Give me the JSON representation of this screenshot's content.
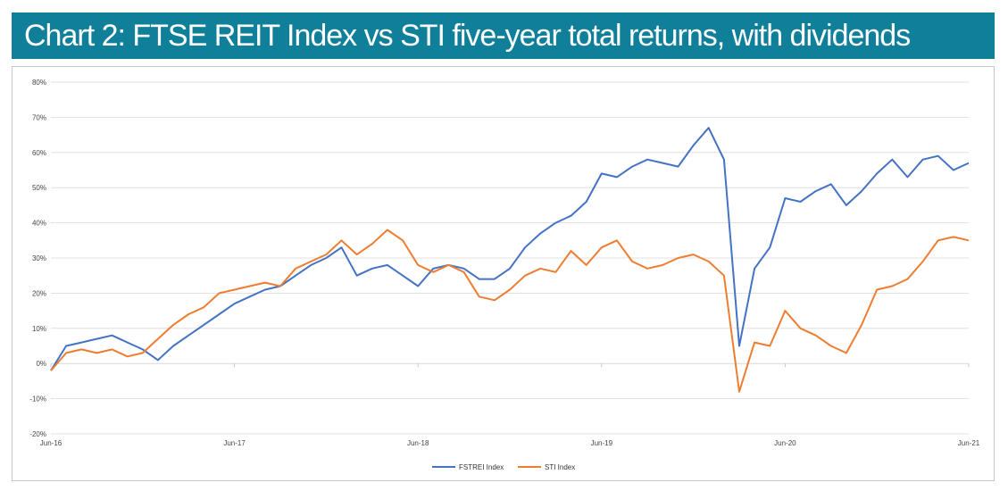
{
  "header": {
    "title": "Chart 2: FTSE REIT Index vs STI five-year total returns, with dividends"
  },
  "colors": {
    "title_bg": "#0f7f9a",
    "series_1": "#4472c4",
    "series_2": "#ed7d31",
    "grid": "#d9d9d9"
  },
  "chart_data": {
    "type": "line",
    "title": "Chart 2: FTSE REIT Index vs STI five-year total returns, with dividends",
    "xlabel": "",
    "ylabel": "",
    "x_ticks": [
      "Jun-16",
      "Jun-17",
      "Jun-18",
      "Jun-19",
      "Jun-20",
      "Jun-21"
    ],
    "y_ticks": [
      "80%",
      "70%",
      "60%",
      "50%",
      "40%",
      "30%",
      "20%",
      "10%",
      "0%",
      "-10%",
      "-20%"
    ],
    "ylim": [
      -20,
      80
    ],
    "xlim": [
      "2016-06",
      "2021-06"
    ],
    "grid": "horizontal",
    "legend_position": "bottom",
    "series": [
      {
        "name": "FSTREI Index",
        "color": "#4472c4",
        "points": [
          [
            "2016-06",
            -2
          ],
          [
            "2016-07",
            5
          ],
          [
            "2016-08",
            6
          ],
          [
            "2016-09",
            7
          ],
          [
            "2016-10",
            8
          ],
          [
            "2016-11",
            6
          ],
          [
            "2016-12",
            4
          ],
          [
            "2017-01",
            1
          ],
          [
            "2017-02",
            5
          ],
          [
            "2017-03",
            8
          ],
          [
            "2017-04",
            11
          ],
          [
            "2017-05",
            14
          ],
          [
            "2017-06",
            17
          ],
          [
            "2017-07",
            19
          ],
          [
            "2017-08",
            21
          ],
          [
            "2017-09",
            22
          ],
          [
            "2017-10",
            25
          ],
          [
            "2017-11",
            28
          ],
          [
            "2017-12",
            30
          ],
          [
            "2018-01",
            33
          ],
          [
            "2018-02",
            25
          ],
          [
            "2018-03",
            27
          ],
          [
            "2018-04",
            28
          ],
          [
            "2018-05",
            25
          ],
          [
            "2018-06",
            22
          ],
          [
            "2018-07",
            27
          ],
          [
            "2018-08",
            28
          ],
          [
            "2018-09",
            27
          ],
          [
            "2018-10",
            24
          ],
          [
            "2018-11",
            24
          ],
          [
            "2018-12",
            27
          ],
          [
            "2019-01",
            33
          ],
          [
            "2019-02",
            37
          ],
          [
            "2019-03",
            40
          ],
          [
            "2019-04",
            42
          ],
          [
            "2019-05",
            46
          ],
          [
            "2019-06",
            54
          ],
          [
            "2019-07",
            53
          ],
          [
            "2019-08",
            56
          ],
          [
            "2019-09",
            58
          ],
          [
            "2019-10",
            57
          ],
          [
            "2019-11",
            56
          ],
          [
            "2019-12",
            62
          ],
          [
            "2020-01",
            67
          ],
          [
            "2020-02",
            58
          ],
          [
            "2020-03",
            5
          ],
          [
            "2020-04",
            27
          ],
          [
            "2020-05",
            33
          ],
          [
            "2020-06",
            47
          ],
          [
            "2020-07",
            46
          ],
          [
            "2020-08",
            49
          ],
          [
            "2020-09",
            51
          ],
          [
            "2020-10",
            45
          ],
          [
            "2020-11",
            49
          ],
          [
            "2020-12",
            54
          ],
          [
            "2021-01",
            58
          ],
          [
            "2021-02",
            53
          ],
          [
            "2021-03",
            58
          ],
          [
            "2021-04",
            59
          ],
          [
            "2021-05",
            55
          ],
          [
            "2021-06",
            57
          ]
        ]
      },
      {
        "name": "STI Index",
        "color": "#ed7d31",
        "points": [
          [
            "2016-06",
            -2
          ],
          [
            "2016-07",
            3
          ],
          [
            "2016-08",
            4
          ],
          [
            "2016-09",
            3
          ],
          [
            "2016-10",
            4
          ],
          [
            "2016-11",
            2
          ],
          [
            "2016-12",
            3
          ],
          [
            "2017-01",
            7
          ],
          [
            "2017-02",
            11
          ],
          [
            "2017-03",
            14
          ],
          [
            "2017-04",
            16
          ],
          [
            "2017-05",
            20
          ],
          [
            "2017-06",
            21
          ],
          [
            "2017-07",
            22
          ],
          [
            "2017-08",
            23
          ],
          [
            "2017-09",
            22
          ],
          [
            "2017-10",
            27
          ],
          [
            "2017-11",
            29
          ],
          [
            "2017-12",
            31
          ],
          [
            "2018-01",
            35
          ],
          [
            "2018-02",
            31
          ],
          [
            "2018-03",
            34
          ],
          [
            "2018-04",
            38
          ],
          [
            "2018-05",
            35
          ],
          [
            "2018-06",
            28
          ],
          [
            "2018-07",
            26
          ],
          [
            "2018-08",
            28
          ],
          [
            "2018-09",
            26
          ],
          [
            "2018-10",
            19
          ],
          [
            "2018-11",
            18
          ],
          [
            "2018-12",
            21
          ],
          [
            "2019-01",
            25
          ],
          [
            "2019-02",
            27
          ],
          [
            "2019-03",
            26
          ],
          [
            "2019-04",
            32
          ],
          [
            "2019-05",
            28
          ],
          [
            "2019-06",
            33
          ],
          [
            "2019-07",
            35
          ],
          [
            "2019-08",
            29
          ],
          [
            "2019-09",
            27
          ],
          [
            "2019-10",
            28
          ],
          [
            "2019-11",
            30
          ],
          [
            "2019-12",
            31
          ],
          [
            "2020-01",
            29
          ],
          [
            "2020-02",
            25
          ],
          [
            "2020-03",
            -8
          ],
          [
            "2020-04",
            6
          ],
          [
            "2020-05",
            5
          ],
          [
            "2020-06",
            15
          ],
          [
            "2020-07",
            10
          ],
          [
            "2020-08",
            8
          ],
          [
            "2020-09",
            5
          ],
          [
            "2020-10",
            3
          ],
          [
            "2020-11",
            11
          ],
          [
            "2020-12",
            21
          ],
          [
            "2021-01",
            22
          ],
          [
            "2021-02",
            24
          ],
          [
            "2021-03",
            29
          ],
          [
            "2021-04",
            35
          ],
          [
            "2021-05",
            36
          ],
          [
            "2021-06",
            35
          ]
        ]
      }
    ]
  }
}
